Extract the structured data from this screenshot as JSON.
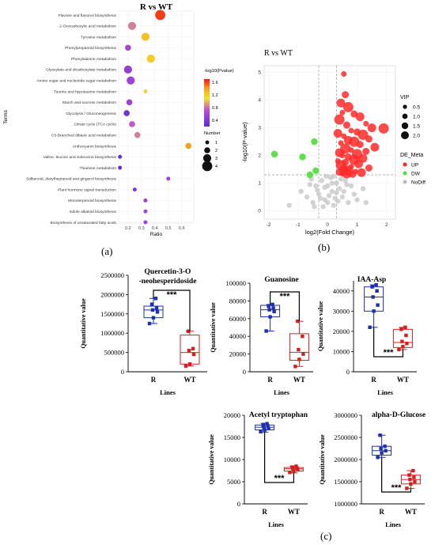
{
  "panel_labels": {
    "a": "(a)",
    "b": "(b)",
    "c": "(c)"
  },
  "chart_data": [
    {
      "id": "a",
      "type": "scatter",
      "title": "R vs WT",
      "xlabel": "Ratio",
      "ylabel": "Terms",
      "xticks": [
        "0.2",
        "0.3",
        "0.4",
        "0.5",
        "0.6"
      ],
      "xlim": [
        0.13,
        0.69
      ],
      "color_legend": {
        "title": "-log10(Pvalue)",
        "ticks": [
          "1.6",
          "1.2",
          "0.8",
          "0.4"
        ],
        "min": 0.2,
        "max": 1.7
      },
      "size_legend": {
        "title": "Number",
        "labels": [
          "1",
          "2",
          "3",
          "4"
        ]
      },
      "terms": [
        {
          "term": "Flavone and flavonol biosynthesis",
          "ratio": 0.44,
          "number": 4,
          "pvalue": 1.62
        },
        {
          "term": "2-Oxocarboxylic acid metabolism",
          "ratio": 0.23,
          "number": 3,
          "pvalue": 0.85
        },
        {
          "term": "Tyrosine metabolism",
          "ratio": 0.33,
          "number": 3,
          "pvalue": 1.25
        },
        {
          "term": "Phenylpropanoid biosynthesis",
          "ratio": 0.2,
          "number": 2,
          "pvalue": 0.6
        },
        {
          "term": "Phenylalanine metabolism",
          "ratio": 0.37,
          "number": 3,
          "pvalue": 1.2
        },
        {
          "term": "Glyoxylate and dicarboxylate metabolism",
          "ratio": 0.2,
          "number": 3,
          "pvalue": 0.5
        },
        {
          "term": "Amino sugar and nucleotide sugar metabolism",
          "ratio": 0.22,
          "number": 3,
          "pvalue": 0.55
        },
        {
          "term": "Taurine and hypotaurine metabolism",
          "ratio": 0.33,
          "number": 1,
          "pvalue": 1.05
        },
        {
          "term": "Starch and sucrose metabolism",
          "ratio": 0.21,
          "number": 2,
          "pvalue": 0.55
        },
        {
          "term": "Glycolysis / Gluconeogenesis",
          "ratio": 0.19,
          "number": 2,
          "pvalue": 0.3
        },
        {
          "term": "Citrate cycle (TCA cycle)",
          "ratio": 0.23,
          "number": 2,
          "pvalue": 0.75
        },
        {
          "term": "C5-Branched dibasic acid metabolism",
          "ratio": 0.27,
          "number": 2,
          "pvalue": 0.85
        },
        {
          "term": "Anthocyanin biosynthesis",
          "ratio": 0.65,
          "number": 2,
          "pvalue": 1.4
        },
        {
          "term": "Valine, leucine and isoleucine biosynthesis",
          "ratio": 0.14,
          "number": 1,
          "pvalue": 0.25
        },
        {
          "term": "Thiamine metabolism",
          "ratio": 0.14,
          "number": 1,
          "pvalue": 0.25
        },
        {
          "term": "Stilbenoid, diarylheptanoid and gingerol biosynthesis",
          "ratio": 0.5,
          "number": 1,
          "pvalue": 0.55
        },
        {
          "term": "Plant hormone signal transduction",
          "ratio": 0.25,
          "number": 1,
          "pvalue": 0.4
        },
        {
          "term": "Monoterpenoid biosynthesis",
          "ratio": 0.33,
          "number": 1,
          "pvalue": 0.55
        },
        {
          "term": "Indole alkaloid biosynthesis",
          "ratio": 0.33,
          "number": 1,
          "pvalue": 0.55
        },
        {
          "term": "Biosynthesis of unsaturated fatty acids",
          "ratio": 0.33,
          "number": 1,
          "pvalue": 0.55
        }
      ]
    },
    {
      "id": "b",
      "type": "scatter",
      "title": "R vs WT",
      "xlabel": "log2(Fold Change)",
      "ylabel": "-log10(P-value)",
      "xticks": [
        "-2",
        "-1",
        "0",
        "1",
        "2"
      ],
      "yticks": [
        "0",
        "1",
        "2",
        "3",
        "4",
        "5"
      ],
      "xlim": [
        -2.15,
        2.3
      ],
      "ylim": [
        -0.3,
        5.25
      ],
      "vlines": [
        -0.3,
        0.3
      ],
      "hline": 1.3,
      "vip_legend": {
        "title": "VIP",
        "labels": [
          "0.5",
          "1.0",
          "1.5",
          "2.0"
        ]
      },
      "class_legend": {
        "title": "DE_Meta",
        "items": [
          {
            "name": "UP",
            "color": "#ff2020"
          },
          {
            "name": "DW",
            "color": "#55dd44"
          },
          {
            "name": "NoDiff",
            "color": "#bbbbbb"
          }
        ]
      },
      "up": [
        [
          0.55,
          4.95
        ],
        [
          0.6,
          4.2
        ],
        [
          0.45,
          3.9
        ],
        [
          0.7,
          3.75
        ],
        [
          0.5,
          3.55
        ],
        [
          0.9,
          3.5
        ],
        [
          1.1,
          3.4
        ],
        [
          0.4,
          3.3
        ],
        [
          1.3,
          3.15
        ],
        [
          0.65,
          3.1
        ],
        [
          1.5,
          3.0
        ],
        [
          1.9,
          2.98
        ],
        [
          0.8,
          2.9
        ],
        [
          1.0,
          2.85
        ],
        [
          0.35,
          2.8
        ],
        [
          1.2,
          2.75
        ],
        [
          0.55,
          2.7
        ],
        [
          1.4,
          2.6
        ],
        [
          0.7,
          2.55
        ],
        [
          0.9,
          2.5
        ],
        [
          0.45,
          2.45
        ],
        [
          1.1,
          2.4
        ],
        [
          1.6,
          2.3
        ],
        [
          0.6,
          2.25
        ],
        [
          0.8,
          2.2
        ],
        [
          1.3,
          2.15
        ],
        [
          0.4,
          2.1
        ],
        [
          1.0,
          2.05
        ],
        [
          0.5,
          2.0
        ],
        [
          0.7,
          1.95
        ],
        [
          1.2,
          1.9
        ],
        [
          0.9,
          1.85
        ],
        [
          0.35,
          1.8
        ],
        [
          0.6,
          1.75
        ],
        [
          1.05,
          1.7
        ],
        [
          0.45,
          1.65
        ],
        [
          0.8,
          1.6
        ],
        [
          1.4,
          1.55
        ],
        [
          0.55,
          1.5
        ],
        [
          0.7,
          1.45
        ],
        [
          0.95,
          1.42
        ],
        [
          0.4,
          1.4
        ],
        [
          1.15,
          1.38
        ],
        [
          0.65,
          1.36
        ],
        [
          0.5,
          1.34
        ],
        [
          0.85,
          1.32
        ]
      ],
      "down": [
        [
          -1.8,
          2.05
        ],
        [
          -0.85,
          1.95
        ],
        [
          -0.45,
          2.5
        ],
        [
          -0.6,
          1.3
        ],
        [
          -0.4,
          1.45
        ]
      ],
      "nodiff": [
        [
          -0.3,
          0.6
        ],
        [
          -0.1,
          0.4
        ],
        [
          0.0,
          0.9
        ],
        [
          0.15,
          0.7
        ],
        [
          0.3,
          1.0
        ],
        [
          -0.5,
          0.3
        ],
        [
          0.5,
          0.5
        ],
        [
          0.2,
          0.2
        ],
        [
          -0.2,
          1.1
        ],
        [
          0.4,
          0.8
        ],
        [
          0.1,
          1.2
        ],
        [
          -0.7,
          0.5
        ],
        [
          0.7,
          0.3
        ],
        [
          0.9,
          0.6
        ],
        [
          -0.4,
          0.9
        ],
        [
          0.6,
          1.1
        ],
        [
          -0.15,
          0.15
        ],
        [
          0.25,
          0.45
        ],
        [
          -0.35,
          0.75
        ],
        [
          0.05,
          0.55
        ],
        [
          0.35,
          0.35
        ],
        [
          -0.05,
          1.25
        ],
        [
          0.45,
          1.15
        ],
        [
          -0.6,
          0.95
        ],
        [
          0.8,
          0.9
        ],
        [
          1.0,
          0.4
        ],
        [
          1.3,
          0.3
        ],
        [
          -1.3,
          0.2
        ],
        [
          -0.9,
          0.7
        ],
        [
          1.2,
          0.8
        ],
        [
          0.15,
          1.0
        ],
        [
          -0.25,
          0.45
        ],
        [
          0.55,
          0.7
        ],
        [
          -0.45,
          0.15
        ],
        [
          0.3,
          0.65
        ],
        [
          0.65,
          0.95
        ],
        [
          -0.1,
          0.85
        ],
        [
          0.0,
          0.3
        ],
        [
          0.2,
          1.25
        ],
        [
          -0.55,
          1.15
        ]
      ]
    },
    {
      "id": "c1",
      "type": "box",
      "title": "Quercetin-3-O -neohesperidoside",
      "title_lines": [
        "Quercetin-3-O",
        "-neohesperidoside"
      ],
      "ylabel": "Quantitative value",
      "xlabel": "Lines",
      "categories": [
        "R",
        "WT"
      ],
      "yticks": [
        "0",
        "500000",
        "1000000",
        "1500000",
        "2000000",
        "2500000"
      ],
      "ylim": [
        0,
        2500000
      ],
      "sig": "***",
      "groups": [
        {
          "name": "R",
          "color": "#1c2fb0",
          "q1": 1400000,
          "median": 1600000,
          "q3": 1700000,
          "min": 1250000,
          "max": 1900000,
          "points": [
            1250000,
            1400000,
            1550000,
            1600000,
            1650000,
            1750000,
            1900000
          ]
        },
        {
          "name": "WT",
          "color": "#d22020",
          "q1": 200000,
          "median": 500000,
          "q3": 950000,
          "min": 150000,
          "max": 1050000,
          "points": [
            150000,
            200000,
            450000,
            550000,
            600000,
            1050000
          ]
        }
      ]
    },
    {
      "id": "c2",
      "type": "box",
      "title": "Guanosine",
      "title_lines": [
        "Guanosine"
      ],
      "ylabel": "Quantitative value",
      "xlabel": "Lines",
      "categories": [
        "R",
        "WT"
      ],
      "yticks": [
        "0",
        "20000",
        "40000",
        "60000",
        "80000",
        "100000"
      ],
      "ylim": [
        0,
        100000
      ],
      "sig": "***",
      "groups": [
        {
          "name": "R",
          "color": "#1c2fb0",
          "q1": 62000,
          "median": 70000,
          "q3": 75000,
          "min": 46000,
          "max": 76000,
          "points": [
            46000,
            62000,
            68000,
            70000,
            72000,
            74000,
            76000
          ]
        },
        {
          "name": "WT",
          "color": "#d22020",
          "q1": 13000,
          "median": 22000,
          "q3": 43000,
          "min": 6000,
          "max": 57000,
          "points": [
            6000,
            14000,
            20000,
            25000,
            40000,
            57000
          ]
        }
      ]
    },
    {
      "id": "c3",
      "type": "box",
      "title": "IAA-Asp",
      "title_lines": [
        "IAA-Asp"
      ],
      "ylabel": "Quantitative value",
      "xlabel": "Lines",
      "categories": [
        "R",
        "WT"
      ],
      "yticks": [
        "0",
        "10000",
        "20000",
        "30000",
        "40000"
      ],
      "ylim": [
        0,
        45000
      ],
      "sig": "***",
      "groups": [
        {
          "name": "R",
          "color": "#1c2fb0",
          "q1": 30000,
          "median": 37000,
          "q3": 42000,
          "min": 22000,
          "max": 43000,
          "points": [
            22000,
            30000,
            33000,
            37000,
            40000,
            42000,
            43000
          ]
        },
        {
          "name": "WT",
          "color": "#d22020",
          "q1": 12000,
          "median": 14500,
          "q3": 21000,
          "min": 11000,
          "max": 22000,
          "points": [
            11000,
            12500,
            14000,
            15000,
            18000,
            21000,
            22000
          ]
        }
      ]
    },
    {
      "id": "c4",
      "type": "box",
      "title": "Acetyl tryptophan",
      "title_lines": [
        "Acetyl tryptophan"
      ],
      "ylabel": "Quantitative value",
      "xlabel": "Lines",
      "categories": [
        "R",
        "WT"
      ],
      "yticks": [
        "0",
        "5000",
        "10000",
        "15000",
        "20000"
      ],
      "ylim": [
        0,
        20000
      ],
      "sig": "***",
      "groups": [
        {
          "name": "R",
          "color": "#1c2fb0",
          "q1": 16700,
          "median": 17300,
          "q3": 17800,
          "min": 16200,
          "max": 18200,
          "points": [
            16300,
            16700,
            17000,
            17300,
            17600,
            17800,
            18100
          ]
        },
        {
          "name": "WT",
          "color": "#d22020",
          "q1": 7400,
          "median": 7900,
          "q3": 8200,
          "min": 7000,
          "max": 8500,
          "points": [
            7100,
            7400,
            7700,
            7900,
            8100,
            8300,
            8500
          ]
        }
      ]
    },
    {
      "id": "c5",
      "type": "box",
      "title": "alpha-D-Glucose",
      "title_lines": [
        "alpha-D-Glucose"
      ],
      "ylabel": "Quantitative value",
      "xlabel": "Lines",
      "categories": [
        "R",
        "WT"
      ],
      "yticks": [
        "1000000",
        "1500000",
        "2000000",
        "2500000",
        "3000000"
      ],
      "ylim": [
        1000000,
        3000000
      ],
      "sig": "***",
      "groups": [
        {
          "name": "R",
          "color": "#1c2fb0",
          "q1": 2100000,
          "median": 2200000,
          "q3": 2300000,
          "min": 2050000,
          "max": 2550000,
          "points": [
            2050000,
            2150000,
            2200000,
            2250000,
            2300000,
            2550000
          ]
        },
        {
          "name": "WT",
          "color": "#d22020",
          "q1": 1450000,
          "median": 1550000,
          "q3": 1650000,
          "min": 1350000,
          "max": 1750000,
          "points": [
            1350000,
            1450000,
            1500000,
            1550000,
            1600000,
            1650000,
            1750000
          ]
        }
      ]
    }
  ]
}
